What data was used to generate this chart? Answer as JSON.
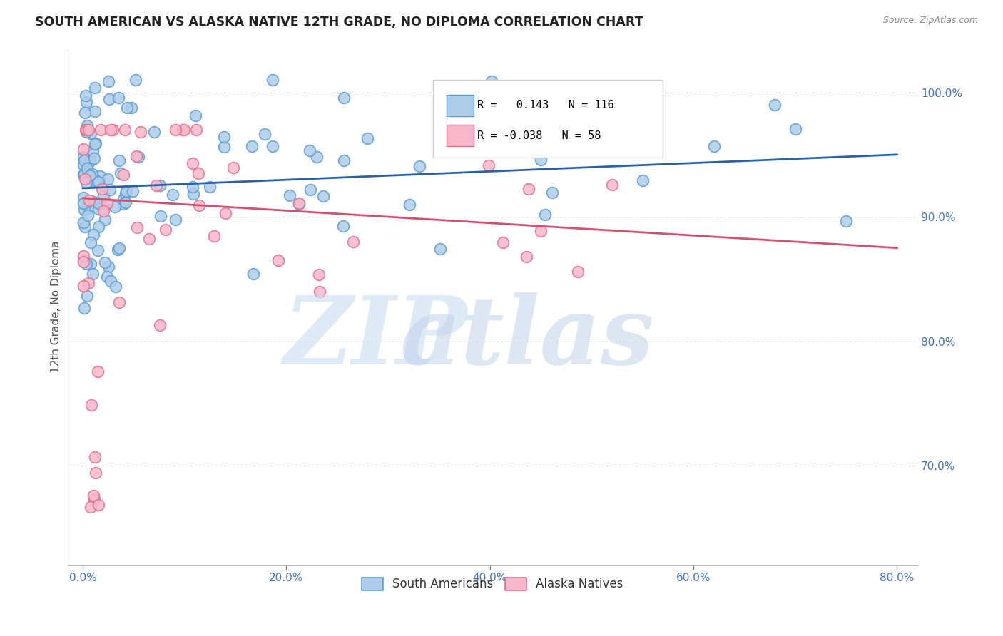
{
  "title": "SOUTH AMERICAN VS ALASKA NATIVE 12TH GRADE, NO DIPLOMA CORRELATION CHART",
  "source": "Source: ZipAtlas.com",
  "ylabel": "12th Grade, No Diploma",
  "x_tick_labels": [
    "0.0%",
    "20.0%",
    "40.0%",
    "60.0%",
    "80.0%"
  ],
  "x_tick_values": [
    0.0,
    20.0,
    40.0,
    60.0,
    80.0
  ],
  "y_tick_labels": [
    "100.0%",
    "90.0%",
    "80.0%",
    "70.0%"
  ],
  "y_tick_values": [
    100.0,
    90.0,
    80.0,
    70.0
  ],
  "xlim": [
    -1.5,
    82.0
  ],
  "ylim": [
    62.0,
    103.5
  ],
  "blue_R": 0.143,
  "blue_N": 116,
  "pink_R": -0.038,
  "pink_N": 58,
  "blue_color": "#aecde8",
  "pink_color": "#f7b8cb",
  "blue_edge_color": "#5b9bd5",
  "pink_edge_color": "#e07090",
  "blue_line_color": "#2962a8",
  "pink_line_color": "#d45070",
  "legend_blue_label": "South Americans",
  "legend_pink_label": "Alaska Natives",
  "title_color": "#222222",
  "axis_label_color": "#4472c4",
  "background_color": "#ffffff",
  "grid_color": "#cccccc",
  "blue_trend_x0": 0.0,
  "blue_trend_x1": 80.0,
  "blue_trend_y0": 92.3,
  "blue_trend_y1": 95.0,
  "pink_trend_x0": 0.0,
  "pink_trend_x1": 80.0,
  "pink_trend_y0": 91.5,
  "pink_trend_y1": 87.5
}
